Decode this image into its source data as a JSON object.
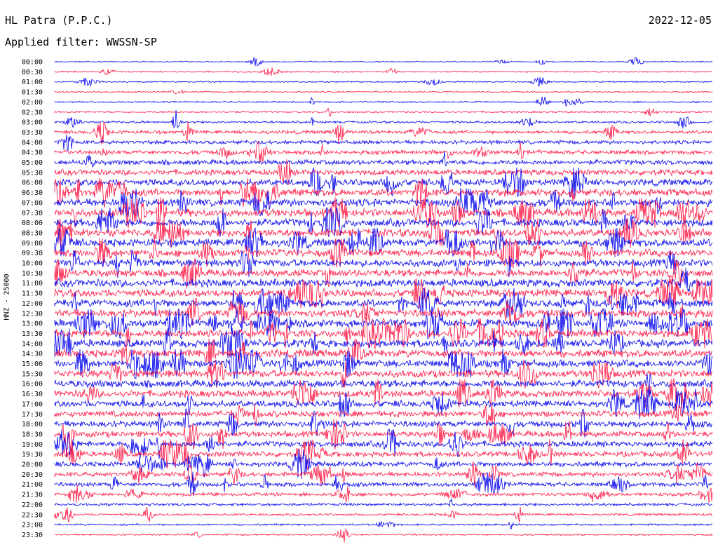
{
  "header": {
    "station": "HL Patra (P.P.C.)",
    "date": "2022-12-05",
    "filter": "Applied filter: WWSSN-SP"
  },
  "chart_data": {
    "type": "line",
    "title": "HL Patra (P.P.C.)",
    "date": "2022-12-05",
    "filter": "WWSSN-SP",
    "ylabel": "HNZ - 25000",
    "row_labels": [
      "00:00",
      "00:30",
      "01:00",
      "01:30",
      "02:00",
      "02:30",
      "03:00",
      "03:30",
      "04:00",
      "04:30",
      "05:00",
      "05:30",
      "06:00",
      "06:30",
      "07:00",
      "07:30",
      "08:00",
      "08:30",
      "09:00",
      "09:30",
      "10:00",
      "10:30",
      "11:00",
      "11:30",
      "12:00",
      "12:30",
      "13:00",
      "13:30",
      "14:00",
      "14:30",
      "15:00",
      "15:30",
      "16:00",
      "16:30",
      "17:00",
      "17:30",
      "18:00",
      "18:30",
      "19:00",
      "19:30",
      "20:00",
      "20:30",
      "21:00",
      "21:30",
      "22:00",
      "22:30",
      "23:00",
      "23:30"
    ],
    "row_colors": [
      "#0000ee",
      "#ff1744"
    ],
    "relative_noise_amplitude": [
      0.3,
      0.35,
      0.35,
      0.35,
      0.4,
      0.45,
      0.6,
      0.9,
      1.0,
      1.1,
      1.3,
      1.5,
      1.7,
      1.9,
      2.0,
      2.0,
      2.0,
      2.0,
      2.0,
      1.9,
      1.9,
      1.9,
      2.0,
      2.0,
      2.0,
      2.0,
      2.0,
      2.0,
      2.0,
      2.0,
      1.9,
      1.9,
      1.9,
      1.8,
      1.7,
      1.6,
      1.6,
      1.5,
      1.5,
      1.4,
      1.3,
      1.2,
      1.1,
      0.9,
      0.7,
      0.6,
      0.5,
      0.45
    ],
    "grid": false
  }
}
